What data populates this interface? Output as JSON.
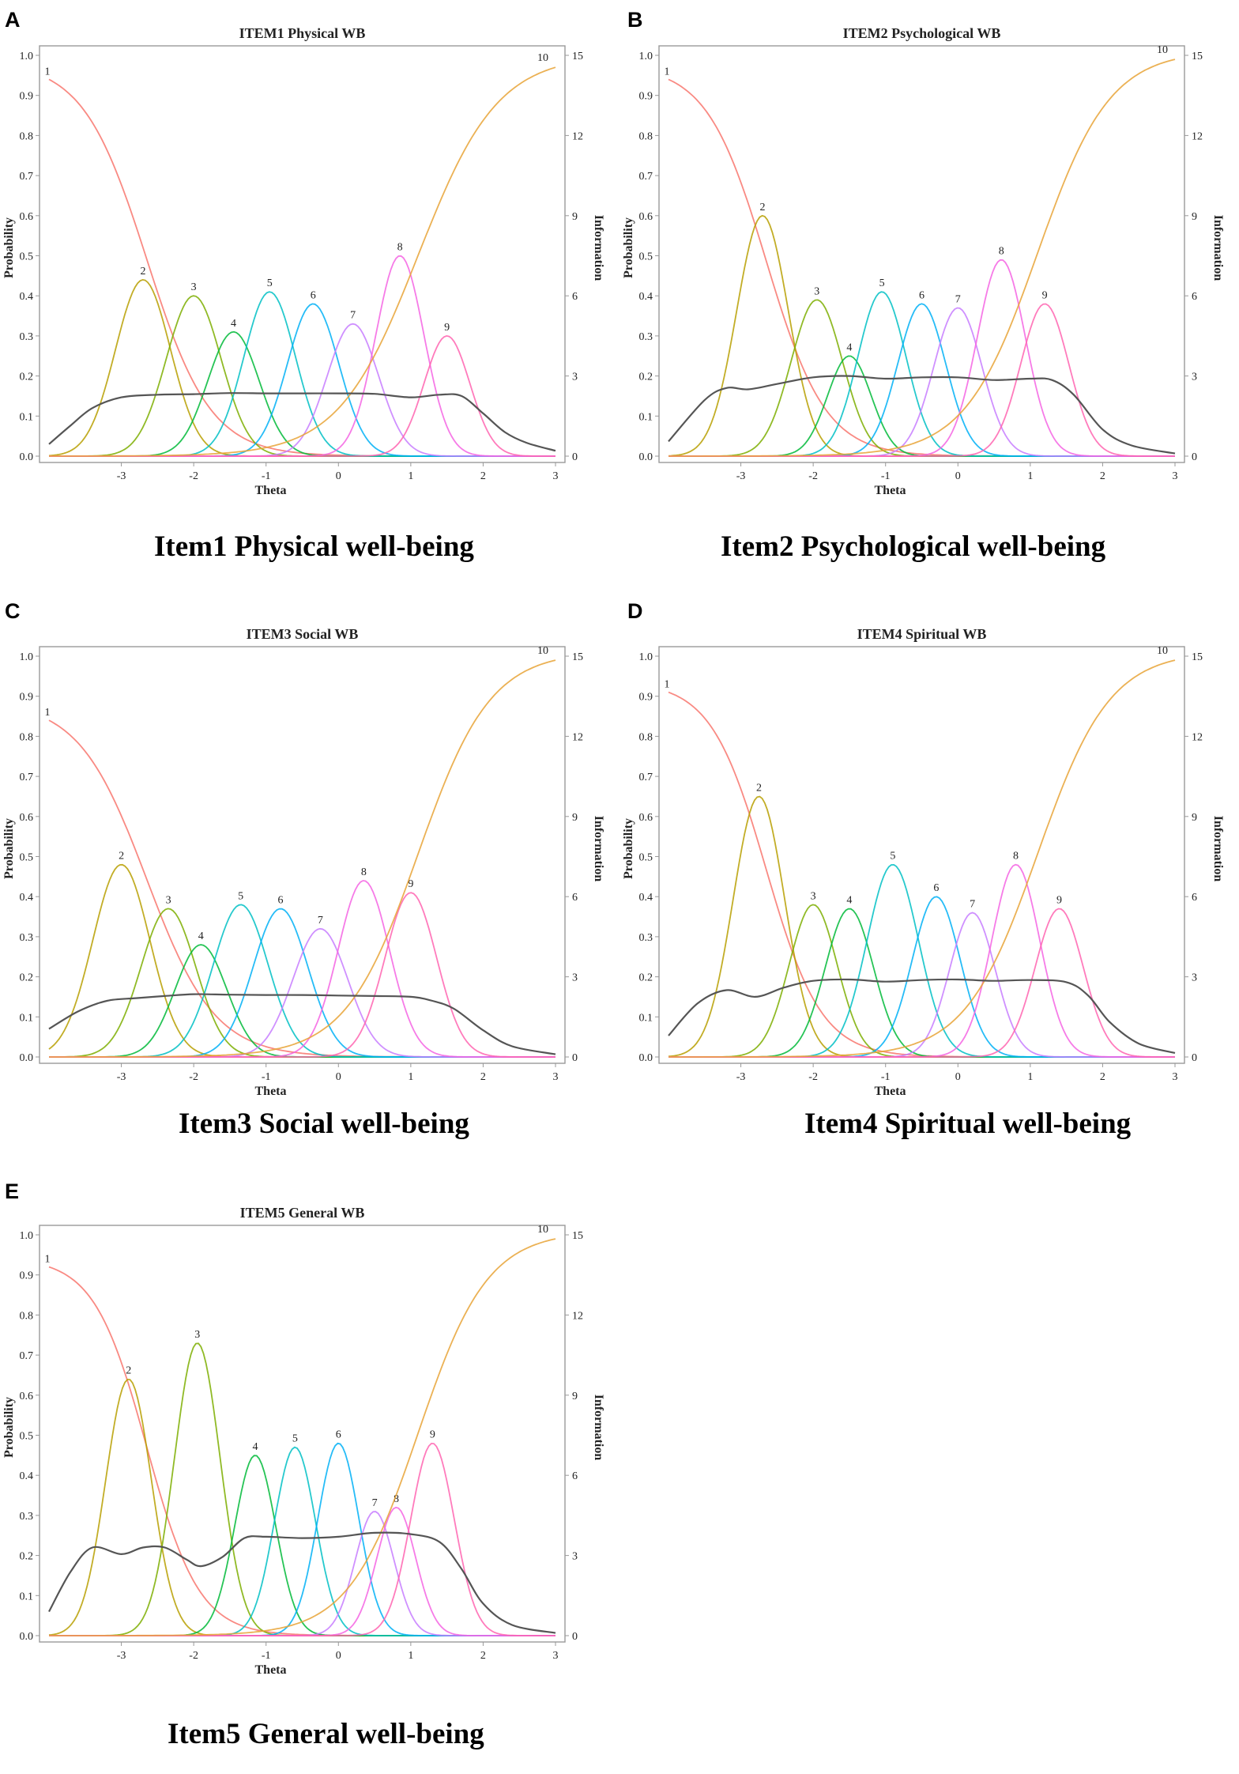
{
  "panels": [
    {
      "letter": "A",
      "caption": "Item1 Physical well-being",
      "chart_data": {
        "type": "line",
        "title": "ITEM1 Physical WB",
        "xlabel": "Theta",
        "ylabel": "Probability",
        "y2label": "Information",
        "xlim": [
          -4,
          3
        ],
        "ylim": [
          0,
          1
        ],
        "y2lim": [
          0,
          15
        ],
        "x_ticks": [
          -3,
          -2,
          -1,
          0,
          1,
          2,
          3
        ],
        "y_ticks": [
          0.0,
          0.1,
          0.2,
          0.3,
          0.4,
          0.5,
          0.6,
          0.7,
          0.8,
          0.9,
          1.0
        ],
        "y_tick_labels": [
          "0.0",
          "0.1",
          "0.2",
          "0.3",
          "0.4",
          "0.5",
          "0.6",
          "0.7",
          "0.8",
          "0.9",
          "1.0"
        ],
        "y2_ticks": [
          0,
          3,
          6,
          9,
          12,
          15
        ],
        "series": [
          {
            "name": "1",
            "color": "#f8766d",
            "kind": "first",
            "peak_x": -4.0,
            "peak_y": 0.94,
            "width": 0.75
          },
          {
            "name": "2",
            "color": "#b79f00",
            "kind": "bell",
            "peak_x": -2.7,
            "peak_y": 0.44,
            "width": 0.48
          },
          {
            "name": "3",
            "color": "#7cae00",
            "kind": "bell",
            "peak_x": -2.0,
            "peak_y": 0.4,
            "width": 0.48
          },
          {
            "name": "4",
            "color": "#00ba38",
            "kind": "bell",
            "peak_x": -1.45,
            "peak_y": 0.31,
            "width": 0.45
          },
          {
            "name": "5",
            "color": "#00bfc4",
            "kind": "bell",
            "peak_x": -0.95,
            "peak_y": 0.41,
            "width": 0.45
          },
          {
            "name": "6",
            "color": "#00b0f6",
            "kind": "bell",
            "peak_x": -0.35,
            "peak_y": 0.38,
            "width": 0.45
          },
          {
            "name": "7",
            "color": "#c77cff",
            "kind": "bell",
            "peak_x": 0.2,
            "peak_y": 0.33,
            "width": 0.45
          },
          {
            "name": "8",
            "color": "#f564e3",
            "kind": "bell",
            "peak_x": 0.85,
            "peak_y": 0.5,
            "width": 0.42
          },
          {
            "name": "9",
            "color": "#ff64b0",
            "kind": "bell",
            "peak_x": 1.5,
            "peak_y": 0.3,
            "width": 0.4
          },
          {
            "name": "10",
            "color": "#e7a336",
            "kind": "last",
            "peak_x": 3.0,
            "peak_y": 0.97,
            "width": 0.55
          }
        ],
        "information": {
          "name": "Information",
          "color": "#555555",
          "x": [
            -4.0,
            -3.7,
            -3.4,
            -3.0,
            -2.5,
            -2.0,
            -1.5,
            -1.0,
            -0.5,
            0.0,
            0.5,
            1.0,
            1.4,
            1.7,
            2.0,
            2.3,
            2.6,
            3.0
          ],
          "y": [
            0.45,
            1.15,
            1.8,
            2.2,
            2.3,
            2.32,
            2.36,
            2.35,
            2.35,
            2.35,
            2.33,
            2.2,
            2.3,
            2.25,
            1.6,
            0.9,
            0.5,
            0.2
          ]
        }
      }
    },
    {
      "letter": "B",
      "caption": "Item2 Psychological well-being",
      "chart_data": {
        "type": "line",
        "title": "ITEM2 Psychological WB",
        "xlabel": "Theta",
        "ylabel": "Probability",
        "y2label": "Information",
        "xlim": [
          -4,
          3
        ],
        "ylim": [
          0,
          1
        ],
        "y2lim": [
          0,
          15
        ],
        "x_ticks": [
          -3,
          -2,
          -1,
          0,
          1,
          2,
          3
        ],
        "y_ticks": [
          0.0,
          0.1,
          0.2,
          0.3,
          0.4,
          0.5,
          0.6,
          0.7,
          0.8,
          0.9,
          1.0
        ],
        "y_tick_labels": [
          "0.0",
          "0.1",
          "0.2",
          "0.3",
          "0.4",
          "0.5",
          "0.6",
          "0.7",
          "0.8",
          "0.9",
          "1.0"
        ],
        "y2_ticks": [
          0,
          3,
          6,
          9,
          12,
          15
        ],
        "series": [
          {
            "name": "1",
            "color": "#f8766d",
            "kind": "first",
            "peak_x": -4.0,
            "peak_y": 0.94,
            "width": 0.7
          },
          {
            "name": "2",
            "color": "#b79f00",
            "kind": "bell",
            "peak_x": -2.7,
            "peak_y": 0.6,
            "width": 0.45
          },
          {
            "name": "3",
            "color": "#7cae00",
            "kind": "bell",
            "peak_x": -1.95,
            "peak_y": 0.39,
            "width": 0.45
          },
          {
            "name": "4",
            "color": "#00ba38",
            "kind": "bell",
            "peak_x": -1.5,
            "peak_y": 0.25,
            "width": 0.38
          },
          {
            "name": "5",
            "color": "#00bfc4",
            "kind": "bell",
            "peak_x": -1.05,
            "peak_y": 0.41,
            "width": 0.42
          },
          {
            "name": "6",
            "color": "#00b0f6",
            "kind": "bell",
            "peak_x": -0.5,
            "peak_y": 0.38,
            "width": 0.42
          },
          {
            "name": "7",
            "color": "#c77cff",
            "kind": "bell",
            "peak_x": 0.0,
            "peak_y": 0.37,
            "width": 0.42
          },
          {
            "name": "8",
            "color": "#f564e3",
            "kind": "bell",
            "peak_x": 0.6,
            "peak_y": 0.49,
            "width": 0.42
          },
          {
            "name": "9",
            "color": "#ff64b0",
            "kind": "bell",
            "peak_x": 1.2,
            "peak_y": 0.38,
            "width": 0.42
          },
          {
            "name": "10",
            "color": "#e7a336",
            "kind": "last",
            "peak_x": 3.0,
            "peak_y": 0.99,
            "width": 0.5
          }
        ],
        "information": {
          "name": "Information",
          "color": "#555555",
          "x": [
            -4.0,
            -3.5,
            -3.2,
            -2.9,
            -2.5,
            -2.0,
            -1.5,
            -1.0,
            -0.5,
            0.0,
            0.5,
            1.0,
            1.3,
            1.6,
            2.0,
            2.4,
            3.0
          ],
          "y": [
            0.55,
            2.1,
            2.55,
            2.5,
            2.7,
            2.95,
            3.0,
            2.9,
            2.95,
            2.95,
            2.85,
            2.9,
            2.85,
            2.3,
            1.0,
            0.4,
            0.1
          ]
        }
      }
    },
    {
      "letter": "C",
      "caption": "Item3 Social well-being",
      "chart_data": {
        "type": "line",
        "title": "ITEM3 Social WB",
        "xlabel": "Theta",
        "ylabel": "Probability",
        "y2label": "Information",
        "xlim": [
          -4,
          3
        ],
        "ylim": [
          0,
          1
        ],
        "y2lim": [
          0,
          15
        ],
        "x_ticks": [
          -3,
          -2,
          -1,
          0,
          1,
          2,
          3
        ],
        "y_ticks": [
          0.0,
          0.1,
          0.2,
          0.3,
          0.4,
          0.5,
          0.6,
          0.7,
          0.8,
          0.9,
          1.0
        ],
        "y_tick_labels": [
          "0.0",
          "0.1",
          "0.2",
          "0.3",
          "0.4",
          "0.5",
          "0.6",
          "0.7",
          "0.8",
          "0.9",
          "1.0"
        ],
        "y2_ticks": [
          0,
          3,
          6,
          9,
          12,
          15
        ],
        "series": [
          {
            "name": "1",
            "color": "#f8766d",
            "kind": "first",
            "peak_x": -4.0,
            "peak_y": 0.84,
            "width": 0.8
          },
          {
            "name": "2",
            "color": "#b79f00",
            "kind": "bell",
            "peak_x": -3.0,
            "peak_y": 0.48,
            "width": 0.5
          },
          {
            "name": "3",
            "color": "#7cae00",
            "kind": "bell",
            "peak_x": -2.35,
            "peak_y": 0.37,
            "width": 0.48
          },
          {
            "name": "4",
            "color": "#00ba38",
            "kind": "bell",
            "peak_x": -1.9,
            "peak_y": 0.28,
            "width": 0.45
          },
          {
            "name": "5",
            "color": "#00bfc4",
            "kind": "bell",
            "peak_x": -1.35,
            "peak_y": 0.38,
            "width": 0.48
          },
          {
            "name": "6",
            "color": "#00b0f6",
            "kind": "bell",
            "peak_x": -0.8,
            "peak_y": 0.37,
            "width": 0.48
          },
          {
            "name": "7",
            "color": "#c77cff",
            "kind": "bell",
            "peak_x": -0.25,
            "peak_y": 0.32,
            "width": 0.48
          },
          {
            "name": "8",
            "color": "#f564e3",
            "kind": "bell",
            "peak_x": 0.35,
            "peak_y": 0.44,
            "width": 0.45
          },
          {
            "name": "9",
            "color": "#ff64b0",
            "kind": "bell",
            "peak_x": 1.0,
            "peak_y": 0.41,
            "width": 0.45
          },
          {
            "name": "10",
            "color": "#e7a336",
            "kind": "last",
            "peak_x": 3.0,
            "peak_y": 0.99,
            "width": 0.5
          }
        ],
        "information": {
          "name": "Information",
          "color": "#555555",
          "x": [
            -4.0,
            -3.6,
            -3.2,
            -2.8,
            -2.4,
            -2.0,
            -1.5,
            -1.0,
            -0.5,
            0.0,
            0.5,
            1.0,
            1.3,
            1.6,
            2.0,
            2.4,
            3.0
          ],
          "y": [
            1.05,
            1.7,
            2.1,
            2.2,
            2.28,
            2.35,
            2.33,
            2.32,
            2.32,
            2.3,
            2.28,
            2.25,
            2.1,
            1.8,
            1.0,
            0.4,
            0.1
          ]
        }
      }
    },
    {
      "letter": "D",
      "caption": "Item4 Spiritual well-being",
      "chart_data": {
        "type": "line",
        "title": "ITEM4 Spiritual WB",
        "xlabel": "Theta",
        "ylabel": "Probability",
        "y2label": "Information",
        "xlim": [
          -4,
          3
        ],
        "ylim": [
          0,
          1
        ],
        "y2lim": [
          0,
          15
        ],
        "x_ticks": [
          -3,
          -2,
          -1,
          0,
          1,
          2,
          3
        ],
        "y_ticks": [
          0.0,
          0.1,
          0.2,
          0.3,
          0.4,
          0.5,
          0.6,
          0.7,
          0.8,
          0.9,
          1.0
        ],
        "y_tick_labels": [
          "0.0",
          "0.1",
          "0.2",
          "0.3",
          "0.4",
          "0.5",
          "0.6",
          "0.7",
          "0.8",
          "0.9",
          "1.0"
        ],
        "y2_ticks": [
          0,
          3,
          6,
          9,
          12,
          15
        ],
        "series": [
          {
            "name": "1",
            "color": "#f8766d",
            "kind": "first",
            "peak_x": -4.0,
            "peak_y": 0.91,
            "width": 0.65
          },
          {
            "name": "2",
            "color": "#b79f00",
            "kind": "bell",
            "peak_x": -2.75,
            "peak_y": 0.65,
            "width": 0.45
          },
          {
            "name": "3",
            "color": "#7cae00",
            "kind": "bell",
            "peak_x": -2.0,
            "peak_y": 0.38,
            "width": 0.42
          },
          {
            "name": "4",
            "color": "#00ba38",
            "kind": "bell",
            "peak_x": -1.5,
            "peak_y": 0.37,
            "width": 0.42
          },
          {
            "name": "5",
            "color": "#00bfc4",
            "kind": "bell",
            "peak_x": -0.9,
            "peak_y": 0.48,
            "width": 0.45
          },
          {
            "name": "6",
            "color": "#00b0f6",
            "kind": "bell",
            "peak_x": -0.3,
            "peak_y": 0.4,
            "width": 0.42
          },
          {
            "name": "7",
            "color": "#c77cff",
            "kind": "bell",
            "peak_x": 0.2,
            "peak_y": 0.36,
            "width": 0.4
          },
          {
            "name": "8",
            "color": "#f564e3",
            "kind": "bell",
            "peak_x": 0.8,
            "peak_y": 0.48,
            "width": 0.42
          },
          {
            "name": "9",
            "color": "#ff64b0",
            "kind": "bell",
            "peak_x": 1.4,
            "peak_y": 0.37,
            "width": 0.42
          },
          {
            "name": "10",
            "color": "#e7a336",
            "kind": "last",
            "peak_x": 3.0,
            "peak_y": 0.99,
            "width": 0.5
          }
        ],
        "information": {
          "name": "Information",
          "color": "#555555",
          "x": [
            -4.0,
            -3.6,
            -3.2,
            -2.8,
            -2.4,
            -2.0,
            -1.5,
            -1.0,
            -0.5,
            0.0,
            0.5,
            1.0,
            1.5,
            1.8,
            2.1,
            2.5,
            3.0
          ],
          "y": [
            0.8,
            2.0,
            2.5,
            2.25,
            2.6,
            2.85,
            2.9,
            2.82,
            2.88,
            2.9,
            2.85,
            2.88,
            2.8,
            2.3,
            1.3,
            0.5,
            0.15
          ]
        }
      }
    },
    {
      "letter": "E",
      "caption": "Item5 General well-being",
      "chart_data": {
        "type": "line",
        "title": "ITEM5 General WB",
        "xlabel": "Theta",
        "ylabel": "Probability",
        "y2label": "Information",
        "xlim": [
          -4,
          3
        ],
        "ylim": [
          0,
          1
        ],
        "y2lim": [
          0,
          15
        ],
        "x_ticks": [
          -3,
          -2,
          -1,
          0,
          1,
          2,
          3
        ],
        "y_ticks": [
          0.0,
          0.1,
          0.2,
          0.3,
          0.4,
          0.5,
          0.6,
          0.7,
          0.8,
          0.9,
          1.0
        ],
        "y_tick_labels": [
          "0.0",
          "0.1",
          "0.2",
          "0.3",
          "0.4",
          "0.5",
          "0.6",
          "0.7",
          "0.8",
          "0.9",
          "1.0"
        ],
        "y2_ticks": [
          0,
          3,
          6,
          9,
          12,
          15
        ],
        "series": [
          {
            "name": "1",
            "color": "#f8766d",
            "kind": "first",
            "peak_x": -4.0,
            "peak_y": 0.92,
            "width": 0.62
          },
          {
            "name": "2",
            "color": "#b79f00",
            "kind": "bell",
            "peak_x": -2.9,
            "peak_y": 0.64,
            "width": 0.4
          },
          {
            "name": "3",
            "color": "#7cae00",
            "kind": "bell",
            "peak_x": -1.95,
            "peak_y": 0.73,
            "width": 0.4
          },
          {
            "name": "4",
            "color": "#00ba38",
            "kind": "bell",
            "peak_x": -1.15,
            "peak_y": 0.45,
            "width": 0.36
          },
          {
            "name": "5",
            "color": "#00bfc4",
            "kind": "bell",
            "peak_x": -0.6,
            "peak_y": 0.47,
            "width": 0.36
          },
          {
            "name": "6",
            "color": "#00b0f6",
            "kind": "bell",
            "peak_x": 0.0,
            "peak_y": 0.48,
            "width": 0.36
          },
          {
            "name": "7",
            "color": "#c77cff",
            "kind": "bell",
            "peak_x": 0.5,
            "peak_y": 0.31,
            "width": 0.34
          },
          {
            "name": "8",
            "color": "#f564e3",
            "kind": "bell",
            "peak_x": 0.8,
            "peak_y": 0.32,
            "width": 0.34
          },
          {
            "name": "9",
            "color": "#ff64b0",
            "kind": "bell",
            "peak_x": 1.3,
            "peak_y": 0.48,
            "width": 0.38
          },
          {
            "name": "10",
            "color": "#e7a336",
            "kind": "last",
            "peak_x": 3.0,
            "peak_y": 0.99,
            "width": 0.48
          }
        ],
        "information": {
          "name": "Information",
          "color": "#555555",
          "x": [
            -4.0,
            -3.7,
            -3.4,
            -3.0,
            -2.7,
            -2.4,
            -2.1,
            -1.9,
            -1.6,
            -1.3,
            -1.0,
            -0.5,
            0.0,
            0.5,
            1.0,
            1.4,
            1.7,
            2.0,
            2.4,
            3.0
          ],
          "y": [
            0.9,
            2.4,
            3.3,
            3.05,
            3.3,
            3.3,
            2.85,
            2.6,
            2.95,
            3.65,
            3.7,
            3.65,
            3.7,
            3.85,
            3.8,
            3.5,
            2.5,
            1.2,
            0.4,
            0.1
          ]
        }
      }
    }
  ]
}
